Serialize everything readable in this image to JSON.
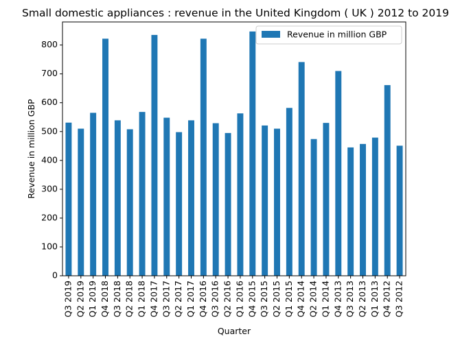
{
  "chart_data": {
    "type": "bar",
    "title": "Small domestic appliances : revenue in the United Kingdom ( UK ) 2012 to 2019",
    "xlabel": "Quarter",
    "ylabel": "Revenue in million GBP",
    "ylim": [
      0,
      880
    ],
    "yticks": [
      0,
      100,
      200,
      300,
      400,
      500,
      600,
      700,
      800
    ],
    "grid": false,
    "legend_position": "top-right",
    "bar_color": "#1f77b4",
    "categories": [
      "Q3 2019",
      "Q2 2019",
      "Q1 2019",
      "Q4 2018",
      "Q3 2018",
      "Q2 2018",
      "Q1 2018",
      "Q4 2017",
      "Q3 2017",
      "Q2 2017",
      "Q1 2017",
      "Q4 2016",
      "Q3 2016",
      "Q2 2016",
      "Q1 2016",
      "Q4 2015",
      "Q3 2015",
      "Q2 2015",
      "Q1 2015",
      "Q4 2014",
      "Q2 2014",
      "Q1 2014",
      "Q4 2013",
      "Q3 2013",
      "Q2 2013",
      "Q1 2013",
      "Q4 2012",
      "Q3 2012"
    ],
    "series": [
      {
        "name": "Revenue in million GBP",
        "values": [
          531,
          510,
          565,
          822,
          539,
          508,
          568,
          835,
          548,
          498,
          539,
          822,
          529,
          495,
          563,
          847,
          521,
          510,
          582,
          741,
          474,
          530,
          710,
          445,
          457,
          479,
          661,
          451
        ]
      }
    ]
  }
}
